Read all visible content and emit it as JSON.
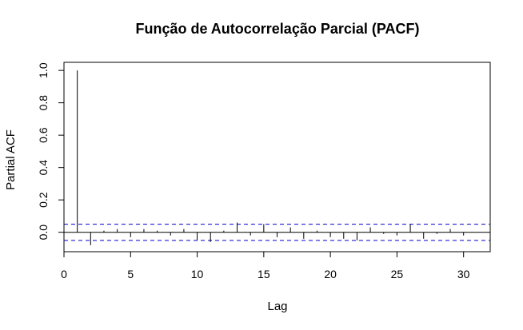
{
  "chart_data": {
    "type": "bar",
    "title": "Função de Autocorrelação Parcial (PACF)",
    "xlabel": "Lag",
    "ylabel": "Partial ACF",
    "xlim": [
      0,
      32
    ],
    "ylim": [
      -0.12,
      1.05
    ],
    "x_ticks": [
      0,
      5,
      10,
      15,
      20,
      25,
      30
    ],
    "y_ticks": [
      0.0,
      0.2,
      0.4,
      0.6,
      0.8,
      1.0
    ],
    "x_tick_labels": [
      "0",
      "5",
      "10",
      "15",
      "20",
      "25",
      "30"
    ],
    "y_tick_labels": [
      "0.0",
      "0.2",
      "0.4",
      "0.6",
      "0.8",
      "1.0"
    ],
    "lags": [
      1,
      2,
      3,
      4,
      5,
      6,
      7,
      8,
      9,
      10,
      11,
      12,
      13,
      14,
      15,
      16,
      17,
      18,
      19,
      20,
      21,
      22,
      23,
      24,
      25,
      26,
      27,
      28,
      29,
      30
    ],
    "values": [
      1.0,
      -0.08,
      0.01,
      0.02,
      -0.03,
      0.02,
      0.01,
      -0.02,
      0.02,
      -0.05,
      -0.06,
      0.01,
      0.06,
      -0.02,
      0.05,
      -0.03,
      0.03,
      -0.04,
      0.01,
      -0.03,
      -0.04,
      -0.05,
      0.03,
      -0.01,
      -0.02,
      0.05,
      -0.04,
      -0.01,
      0.02,
      -0.02
    ],
    "confidence_bound": 0.05,
    "colors": {
      "bars": "#000000",
      "confidence": "#0000cc",
      "zero_line": "#000000",
      "frame": "#000000"
    },
    "grid": false,
    "legend": "none"
  }
}
